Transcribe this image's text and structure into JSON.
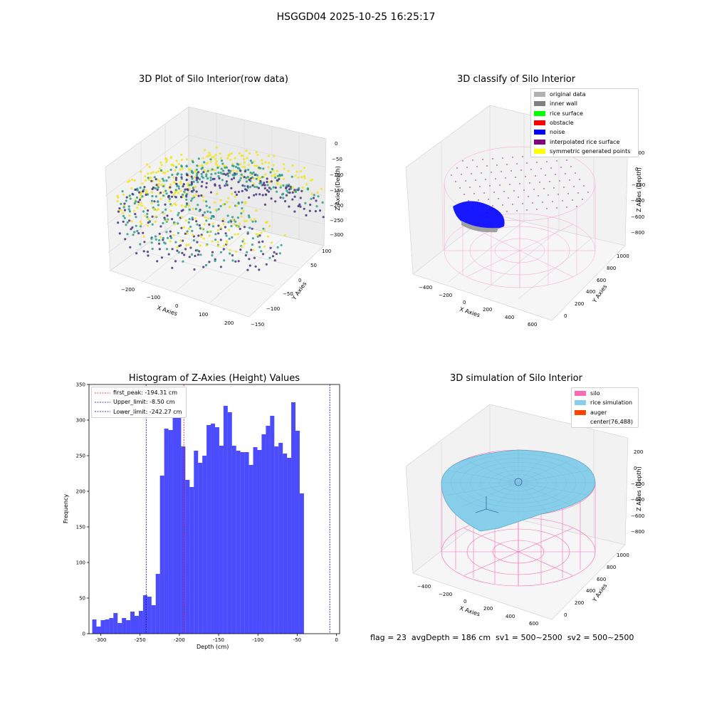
{
  "figure": {
    "title": "HSGGD04 2025-10-25 16:25:17",
    "status_line": "flag = 23  avgDepth = 186 cm  sv1 = 500~2500  sv2 = 500~2500"
  },
  "panels": {
    "raw": {
      "title": "3D Plot of Silo Interior(row data)",
      "xlabel": "X Axies",
      "ylabel": "Y Axies",
      "zlabel": "Z Axies (Depth)",
      "xticks": [
        "−200",
        "−100",
        "0",
        "100",
        "200"
      ],
      "yticks": [
        "−150",
        "−100",
        "−50",
        "0",
        "50",
        "100"
      ],
      "zticks": [
        "0",
        "−50",
        "−100",
        "−150",
        "−200",
        "−250",
        "−300"
      ],
      "colors": {
        "high": "#f1e51d",
        "mid": "#2a9d8c",
        "low": "#46327e"
      }
    },
    "classify": {
      "title": "3D classify of Silo Interior",
      "xlabel": "X Axies",
      "ylabel": "Y Axies",
      "zlabel": "Z Axies (Depth)",
      "xticks": [
        "−400",
        "−200",
        "0",
        "200",
        "400",
        "600"
      ],
      "yticks": [
        "0",
        "200",
        "400",
        "600",
        "800",
        "1000"
      ],
      "zticks": [
        "200",
        "0",
        "−200",
        "−400",
        "−600",
        "−800"
      ],
      "legend": [
        {
          "label": "original data",
          "color": "#b0b0b0"
        },
        {
          "label": "inner wall",
          "color": "#808080"
        },
        {
          "label": "rice surface",
          "color": "#00ff00"
        },
        {
          "label": "obstacle",
          "color": "#ff0000"
        },
        {
          "label": "noise",
          "color": "#0000ff"
        },
        {
          "label": "interpolated rice surface",
          "color": "#800080"
        },
        {
          "label": "symmetric generated points",
          "color": "#ffff00"
        }
      ]
    },
    "simulation": {
      "title": "3D simulation of Silo Interior",
      "xlabel": "X Axies",
      "ylabel": "Y Axies",
      "zlabel": "Z Axies (Depth)",
      "xticks": [
        "−400",
        "−200",
        "0",
        "200",
        "400",
        "600"
      ],
      "yticks": [
        "0",
        "200",
        "400",
        "600",
        "800",
        "1000"
      ],
      "zticks": [
        "200",
        "0",
        "−200",
        "−400",
        "−600",
        "−800"
      ],
      "legend": [
        {
          "label": "silo",
          "color": "#ff69b4"
        },
        {
          "label": "rice simulation",
          "color": "#87ceeb"
        },
        {
          "label": "auger",
          "color": "#ff4500"
        },
        {
          "label": "center(76,488)",
          "color": ""
        }
      ]
    }
  },
  "chart_data": {
    "type": "bar",
    "title": "Histogram of Z-Axies (Height) Values",
    "xlabel": "Depth (cm)",
    "ylabel": "Frequency",
    "xlim": [
      -315,
      4
    ],
    "ylim": [
      0,
      350
    ],
    "bin_start": -310.9,
    "bin_width": 5.39,
    "values": [
      20,
      10,
      19,
      20,
      22,
      29,
      15,
      22,
      19,
      31,
      25,
      32,
      54,
      52,
      40,
      84,
      222,
      288,
      286,
      335,
      326,
      263,
      216,
      206,
      257,
      240,
      250,
      293,
      295,
      290,
      264,
      320,
      311,
      264,
      257,
      255,
      255,
      237,
      262,
      258,
      280,
      292,
      306,
      263,
      268,
      253,
      247,
      325,
      285,
      197
    ],
    "xticks": [
      -300,
      -250,
      -200,
      -150,
      -100,
      -50,
      0
    ],
    "yticks": [
      0,
      50,
      100,
      150,
      200,
      250,
      300,
      350
    ],
    "bar_color": "#0000ff",
    "vlines": [
      {
        "label": "first_peak: -194.31 cm",
        "x": -194.31,
        "color": "#ff0000"
      },
      {
        "label": "Upper_limit: -8.50 cm",
        "x": -8.5,
        "color": "#00008b"
      },
      {
        "label": "Lower_limit: -242.27 cm",
        "x": -242.27,
        "color": "#00008b"
      }
    ]
  }
}
